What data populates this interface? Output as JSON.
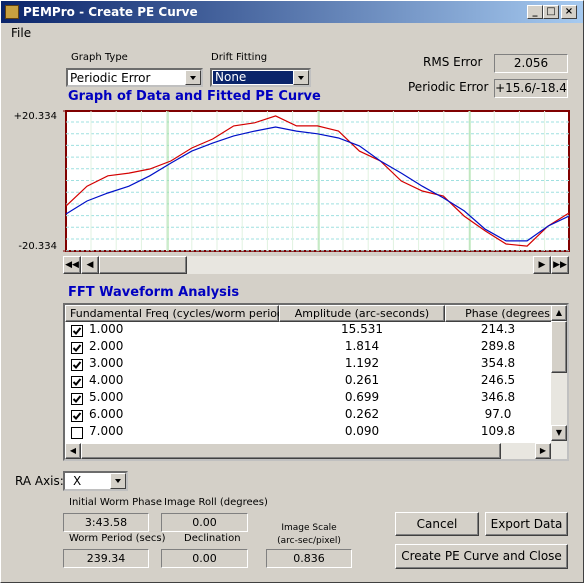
{
  "window": {
    "title": "PEMPro - Create PE Curve"
  },
  "menu": [
    "File"
  ],
  "graph_type": {
    "label": "Graph Type",
    "value": "Periodic Error"
  },
  "drift_fitting": {
    "label": "Drift Fitting",
    "value": "None"
  },
  "rms_error": {
    "label": "RMS Error",
    "value": "2.056"
  },
  "periodic_error": {
    "label": "Periodic Error",
    "value": "+15.6/-18.4"
  },
  "graph": {
    "title": "Graph of Data and Fitted PE Curve",
    "ylim": [
      -20.334,
      20.334
    ],
    "yticks": [
      {
        "value": 20.334,
        "label": "+20.334"
      },
      -20.334
    ],
    "series": [
      {
        "color": "#d40000",
        "values": [
          -7.3,
          -1.5,
          1.5,
          2.3,
          3.5,
          5.8,
          9.6,
          12.2,
          16.0,
          16.9,
          18.9,
          16.0,
          16.0,
          14.5,
          8.7,
          5.8,
          0.0,
          -2.9,
          -4.4,
          -10.2,
          -14.5,
          -18.3,
          -18.9,
          -13.1,
          -9.3
        ]
      },
      {
        "color": "#0010c8",
        "values": [
          -9.6,
          -5.8,
          -3.5,
          -1.5,
          1.5,
          5.2,
          8.7,
          11.0,
          13.1,
          14.5,
          15.7,
          14.5,
          13.7,
          12.5,
          10.2,
          5.8,
          2.3,
          -1.5,
          -4.9,
          -8.7,
          -14.0,
          -17.4,
          -17.4,
          -13.1,
          -10.2
        ]
      }
    ]
  },
  "fft": {
    "title": "FFT Waveform Analysis",
    "columns": [
      "Fundamental Freq (cycles/worm period)",
      "Amplitude (arc-seconds)",
      "Phase (degrees"
    ],
    "rows": [
      {
        "checked": true,
        "cells": [
          "1.000",
          "15.531",
          "214.3"
        ]
      },
      {
        "checked": true,
        "cells": [
          "2.000",
          "1.814",
          "289.8"
        ]
      },
      {
        "checked": true,
        "cells": [
          "3.000",
          "1.192",
          "354.8"
        ]
      },
      {
        "checked": true,
        "cells": [
          "4.000",
          "0.261",
          "246.5"
        ]
      },
      {
        "checked": true,
        "cells": [
          "5.000",
          "0.699",
          "346.8"
        ]
      },
      {
        "checked": true,
        "cells": [
          "6.000",
          "0.262",
          "97.0"
        ]
      },
      {
        "checked": false,
        "cells": [
          "7.000",
          "0.090",
          "109.8"
        ]
      }
    ]
  },
  "ra_axis": {
    "label": "RA Axis:",
    "value": "X"
  },
  "initial_worm_phase": {
    "label": "Initial Worm Phase",
    "value": "3:43.58"
  },
  "image_roll": {
    "label": "Image Roll (degrees)",
    "value": "0.00"
  },
  "worm_period": {
    "label": "Worm Period (secs)",
    "value": "239.34"
  },
  "declination": {
    "label": "Declination",
    "value": "0.00"
  },
  "image_scale": {
    "label": "Image Scale",
    "unit": "(arc-sec/pixel)",
    "value": "0.836"
  },
  "buttons": {
    "cancel": "Cancel",
    "export": "Export Data",
    "create": "Create PE Curve and Close"
  }
}
